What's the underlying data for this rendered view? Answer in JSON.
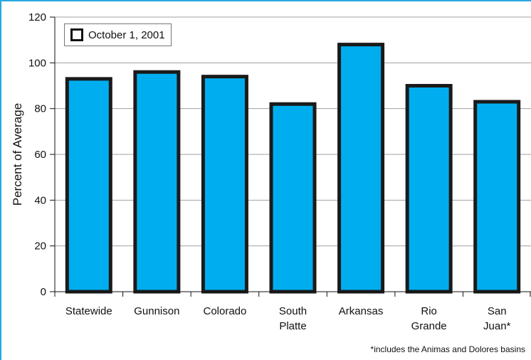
{
  "chart_data": {
    "type": "bar",
    "ylabel": "Percent of Average",
    "ylim": [
      0,
      120
    ],
    "yticks": [
      0,
      20,
      40,
      60,
      80,
      100,
      120
    ],
    "grid": true,
    "legend_position": "top-left",
    "categories": [
      "Statewide",
      "Gunnison",
      "Colorado",
      "South Platte",
      "Arkansas",
      "Rio Grande",
      "San Juan*"
    ],
    "series": [
      {
        "name": "October 1, 2001",
        "values": [
          93,
          96,
          94,
          82,
          108,
          90,
          83
        ]
      }
    ],
    "footnote": "*includes the Animas and Dolores basins"
  },
  "colors": {
    "bar_fill": "#00aeef",
    "bar_stroke": "#1a1a1a",
    "grid": "#a0a0a0",
    "frame": "#29a9e0"
  }
}
